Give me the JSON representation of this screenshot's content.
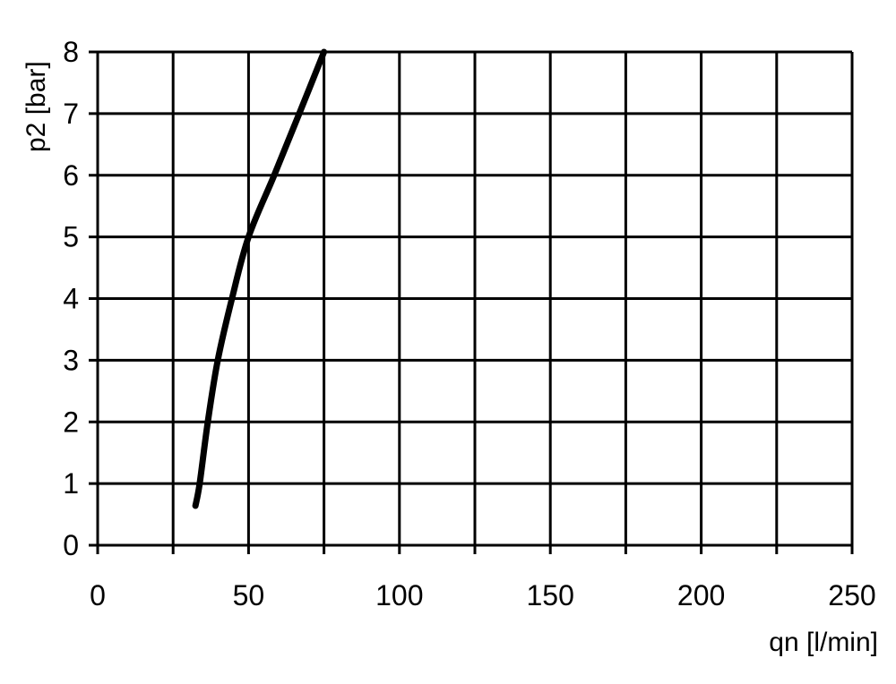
{
  "chart_data": {
    "type": "line",
    "title": "",
    "xlabel": "qn [l/min]",
    "ylabel": "p2 [bar]",
    "xlim": [
      0,
      250
    ],
    "ylim": [
      0,
      8
    ],
    "xticks": [
      0,
      50,
      100,
      150,
      200,
      250
    ],
    "xtick_labels": [
      "0",
      "50",
      "100",
      "150",
      "200",
      "250"
    ],
    "yticks": [
      0,
      1,
      2,
      3,
      4,
      5,
      6,
      7,
      8
    ],
    "ytick_labels": [
      "0",
      "1",
      "2",
      "3",
      "4",
      "5",
      "6",
      "7",
      "8"
    ],
    "x_grid_step": 25,
    "y_grid_step": 1,
    "grid": true,
    "line_color": "#000000",
    "series": [
      {
        "x": [
          32.4,
          33.8,
          36.5,
          39.8,
          44.5,
          50,
          58.5,
          66.8,
          75
        ],
        "y": [
          0.64,
          1,
          2,
          3,
          4,
          5,
          6,
          7,
          8
        ]
      }
    ]
  }
}
